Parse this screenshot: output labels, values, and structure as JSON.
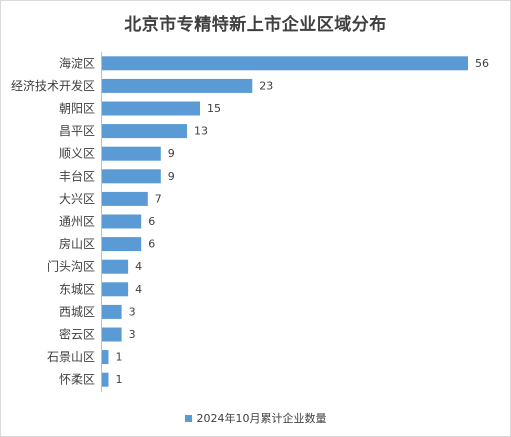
{
  "chart_data": {
    "type": "bar",
    "orientation": "horizontal",
    "title": "北京市专精特新上市企业区域分布",
    "categories": [
      "海淀区",
      "经济技术开发区",
      "朝阳区",
      "昌平区",
      "顺义区",
      "丰台区",
      "大兴区",
      "通州区",
      "房山区",
      "门头沟区",
      "东城区",
      "西城区",
      "密云区",
      "石景山区",
      "怀柔区"
    ],
    "series": [
      {
        "name": "2024年10月累计企业数量",
        "values": [
          56,
          23,
          15,
          13,
          9,
          9,
          7,
          6,
          6,
          4,
          4,
          3,
          3,
          1,
          1
        ]
      }
    ],
    "xlim": [
      0,
      56
    ],
    "grid": false,
    "data_labels": true,
    "legend_position": "bottom",
    "bar_color": "#5b9bd5"
  }
}
